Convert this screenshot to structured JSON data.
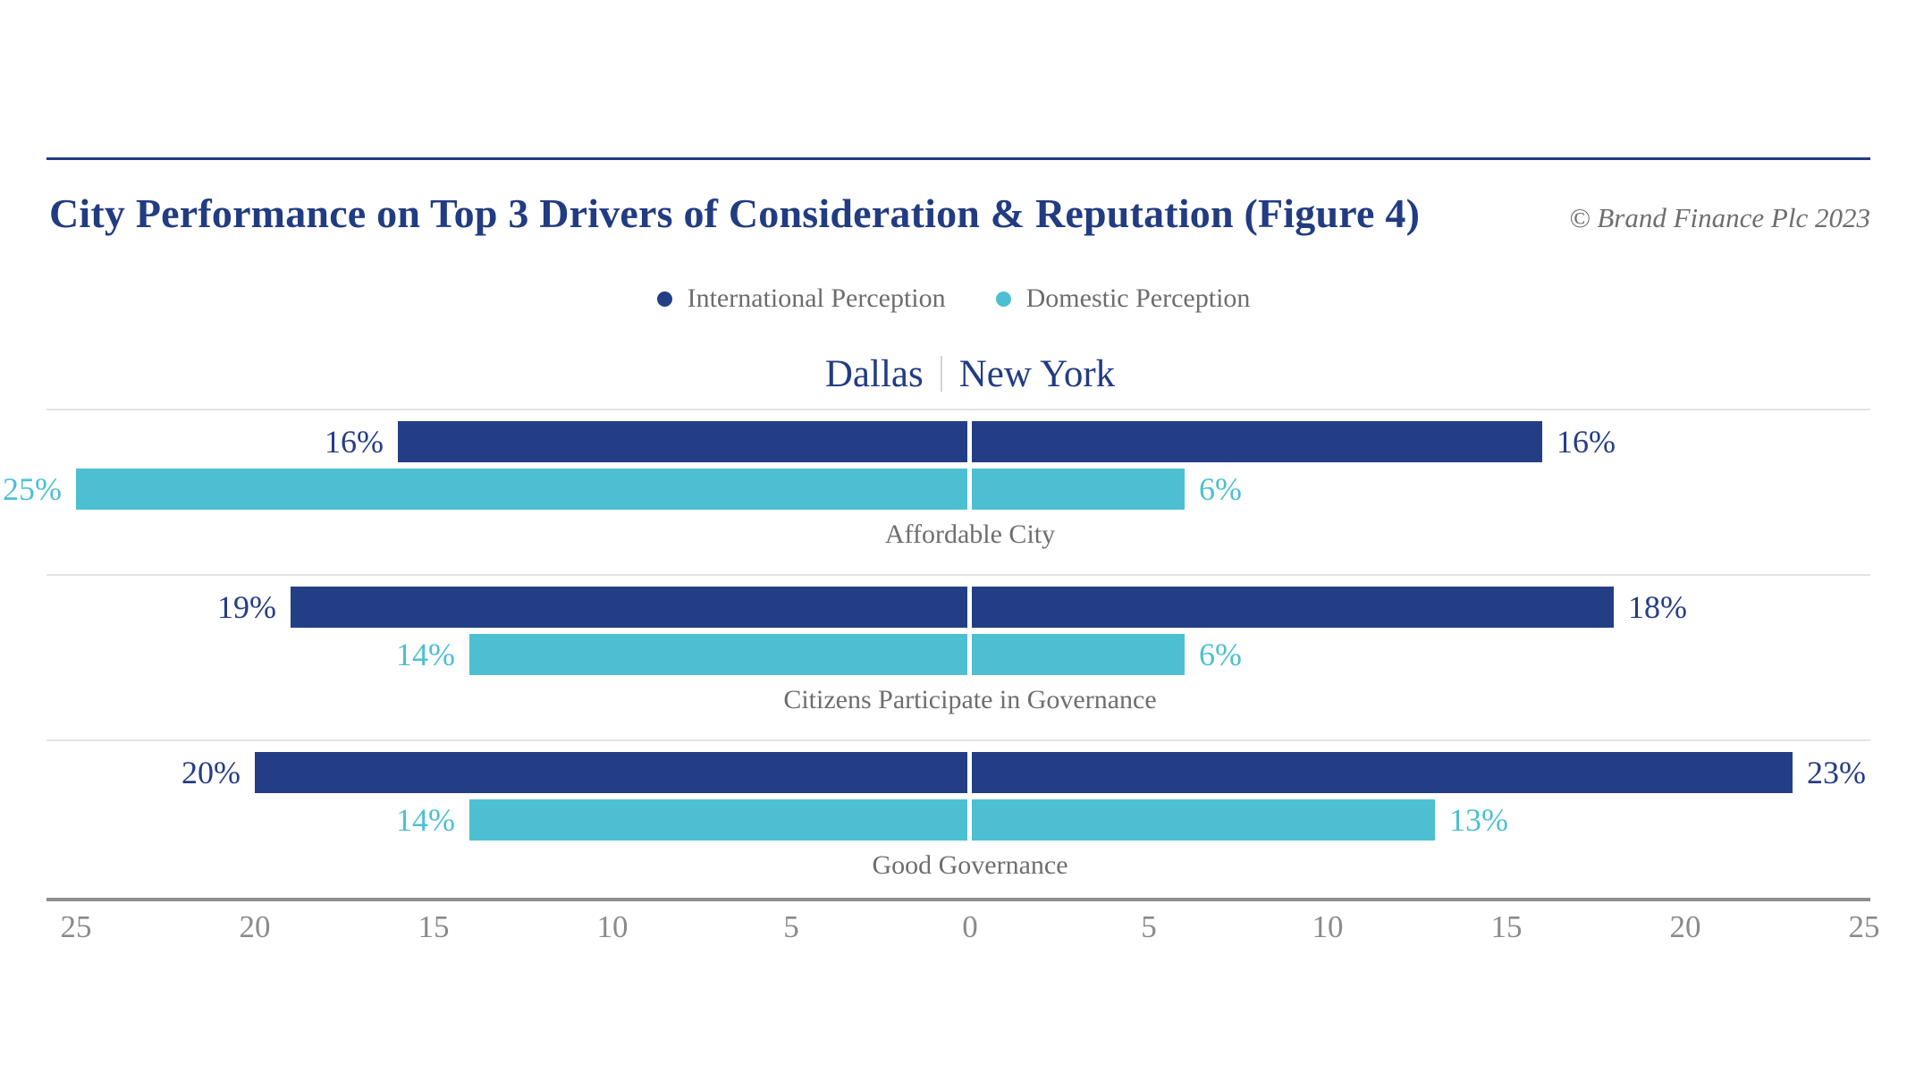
{
  "header": {
    "title": "City Performance on Top 3 Drivers of Consideration & Reputation (Figure 4)",
    "copyright": "© Brand Finance Plc 2023"
  },
  "legend": [
    {
      "label": "International Perception",
      "color": "#243e86"
    },
    {
      "label": "Domestic Perception",
      "color": "#4cc0d2"
    }
  ],
  "cities": {
    "left": "Dallas",
    "right": "New York"
  },
  "chart_data": {
    "type": "bar",
    "subtype": "diverging-horizontal-mirrored",
    "title": "City Performance on Top 3 Drivers of Consideration & Reputation (Figure 4)",
    "categories": [
      "Affordable City",
      "Citizens Participate in Governance",
      "Good Governance"
    ],
    "series": [
      {
        "name": "International Perception",
        "city": "Dallas",
        "side": "left",
        "color": "#243e86",
        "values": [
          16,
          19,
          20
        ]
      },
      {
        "name": "Domestic Perception",
        "city": "Dallas",
        "side": "left",
        "color": "#4cc0d2",
        "values": [
          25,
          14,
          14
        ]
      },
      {
        "name": "International Perception",
        "city": "New York",
        "side": "right",
        "color": "#243e86",
        "values": [
          16,
          18,
          23
        ]
      },
      {
        "name": "Domestic Perception",
        "city": "New York",
        "side": "right",
        "color": "#4cc0d2",
        "values": [
          6,
          6,
          13
        ]
      }
    ],
    "value_suffix": "%",
    "axis": {
      "ticks": [
        "25",
        "20",
        "15",
        "10",
        "5",
        "0",
        "5",
        "10",
        "15",
        "20",
        "25"
      ],
      "max": 25
    },
    "legend_position": "top-center",
    "grid": false
  },
  "colors": {
    "navy": "#243e86",
    "cyan": "#4cc0d2",
    "title_navy": "#223c82",
    "gray_text": "#6e6e6e",
    "tick_gray": "#8a8a8a",
    "separator": "#e3e3e3",
    "axis_line": "#8e8e8e",
    "background": "#ffffff"
  }
}
